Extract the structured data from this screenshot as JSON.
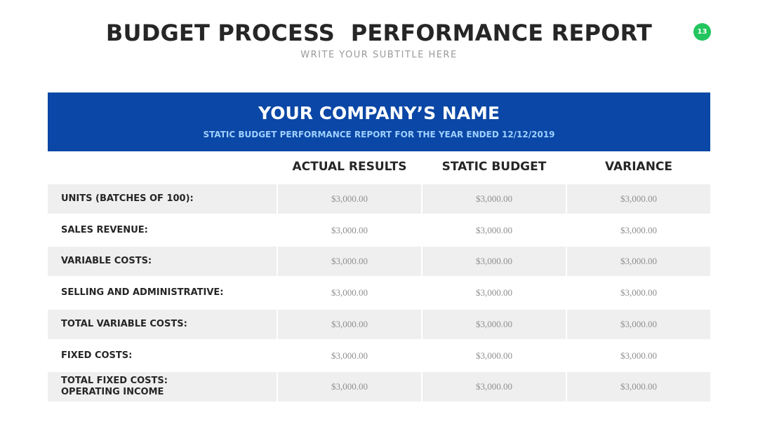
{
  "header": {
    "title": "BUDGET PROCESS  PERFORMANCE REPORT",
    "subtitle": "WRITE YOUR SUBTITLE HERE",
    "page_number": "13"
  },
  "table": {
    "company": "YOUR COMPANY’S NAME",
    "caption": "STATIC BUDGET PERFORMANCE REPORT FOR THE YEAR ENDED 12/12/2019",
    "columns": [
      "ACTUAL RESULTS",
      "STATIC BUDGET",
      "VARIANCE"
    ],
    "rows": [
      {
        "label": "UNITS (BATCHES OF 100):",
        "values": [
          "$3,000.00",
          "$3,000.00",
          "$3,000.00"
        ]
      },
      {
        "label": "SALES REVENUE:",
        "values": [
          "$3,000.00",
          "$3,000.00",
          "$3,000.00"
        ]
      },
      {
        "label": "VARIABLE COSTS:",
        "values": [
          "$3,000.00",
          "$3,000.00",
          "$3,000.00"
        ]
      },
      {
        "label": "SELLING AND ADMINISTRATIVE:",
        "values": [
          "$3,000.00",
          "$3,000.00",
          "$3,000.00"
        ]
      },
      {
        "label": "TOTAL VARIABLE COSTS:",
        "values": [
          "$3,000.00",
          "$3,000.00",
          "$3,000.00"
        ]
      },
      {
        "label": "FIXED COSTS:",
        "values": [
          "$3,000.00",
          "$3,000.00",
          "$3,000.00"
        ]
      },
      {
        "label": "TOTAL FIXED COSTS:\nOPERATING INCOME",
        "values": [
          "$3,000.00",
          "$3,000.00",
          "$3,000.00"
        ]
      }
    ]
  }
}
